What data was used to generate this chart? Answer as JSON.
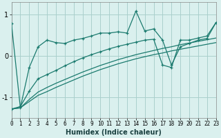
{
  "title": "",
  "xlabel": "Humidex (Indice chaleur)",
  "bg_color": "#daf0ee",
  "line_color": "#1a7a6e",
  "grid_color": "#aacfcc",
  "xlim": [
    0,
    23
  ],
  "ylim": [
    -1.5,
    1.3
  ],
  "yticks": [
    -1,
    0,
    1
  ],
  "xticks": [
    0,
    1,
    2,
    3,
    4,
    5,
    6,
    7,
    8,
    9,
    10,
    11,
    12,
    13,
    14,
    15,
    16,
    17,
    18,
    19,
    20,
    21,
    22,
    23
  ],
  "main_y": [
    0.78,
    -1.25,
    -0.28,
    0.22,
    0.38,
    0.32,
    0.3,
    0.38,
    0.42,
    0.48,
    0.55,
    0.55,
    0.58,
    0.55,
    1.08,
    0.6,
    0.65,
    0.38,
    -0.22,
    0.22,
    0.3,
    0.38,
    0.42,
    0.8
  ],
  "line2_y": [
    -1.28,
    -1.22,
    -0.85,
    -0.55,
    -0.45,
    -0.35,
    -0.24,
    -0.14,
    -0.05,
    0.03,
    0.1,
    0.17,
    0.23,
    0.28,
    0.33,
    0.38,
    0.4,
    -0.22,
    -0.28,
    0.38,
    0.38,
    0.43,
    0.48,
    0.8
  ],
  "line3a_y": [
    -1.28,
    -1.25,
    -1.05,
    -0.87,
    -0.76,
    -0.66,
    -0.57,
    -0.48,
    -0.39,
    -0.31,
    -0.23,
    -0.16,
    -0.09,
    -0.03,
    0.03,
    0.08,
    0.13,
    0.18,
    0.22,
    0.27,
    0.31,
    0.35,
    0.39,
    0.43
  ],
  "line3b_y": [
    -1.28,
    -1.25,
    -1.1,
    -0.95,
    -0.86,
    -0.76,
    -0.67,
    -0.58,
    -0.49,
    -0.41,
    -0.33,
    -0.26,
    -0.19,
    -0.13,
    -0.07,
    -0.02,
    0.03,
    0.07,
    0.12,
    0.16,
    0.2,
    0.24,
    0.28,
    0.32
  ]
}
